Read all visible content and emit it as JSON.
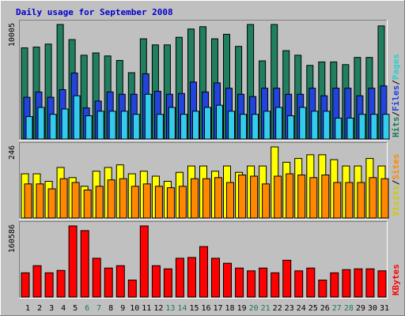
{
  "chart_data": {
    "type": "bar",
    "title": "Daily usage for September 2008",
    "categories": [
      "1",
      "2",
      "3",
      "4",
      "5",
      "6",
      "7",
      "8",
      "9",
      "10",
      "11",
      "12",
      "13",
      "14",
      "15",
      "16",
      "17",
      "18",
      "19",
      "20",
      "21",
      "22",
      "23",
      "24",
      "25",
      "26",
      "27",
      "28",
      "29",
      "30",
      "31"
    ],
    "weekend_days": [
      "6",
      "7",
      "13",
      "14",
      "20",
      "21",
      "27",
      "28"
    ],
    "panels": [
      {
        "name": "hits-files-pages",
        "ymax_label": "10005",
        "ylim": [
          0,
          10005
        ],
        "right_labels": [
          {
            "text": "Hits",
            "color": "#1a7a5a"
          },
          {
            "text": "/",
            "color": "#000000"
          },
          {
            "text": "Files",
            "color": "#1e3fe0"
          },
          {
            "text": "/",
            "color": "#000000"
          },
          {
            "text": "Pages",
            "color": "#33cccc"
          }
        ],
        "series": [
          {
            "name": "Hits",
            "color": "#1f7f5f",
            "values": [
              7965,
              8031,
              8297,
              10005,
              8688,
              7324,
              7523,
              7258,
              6863,
              5798,
              8754,
              8223,
              8223,
              8886,
              9615,
              9814,
              8754,
              9151,
              8091,
              10005,
              6830,
              10071,
              7721,
              7324,
              6433,
              6731,
              6731,
              6499,
              7125,
              7125,
              9880
            ]
          },
          {
            "name": "Files",
            "color": "#2244dd",
            "values": [
              3647,
              4111,
              3647,
              4310,
              5768,
              2719,
              3316,
              4111,
              3912,
              3912,
              5702,
              4177,
              3912,
              3978,
              4973,
              4111,
              4907,
              4442,
              3912,
              3713,
              4442,
              4442,
              3912,
              3912,
              4442,
              3779,
              4442,
              4442,
              3779,
              4442,
              4642
            ]
          },
          {
            "name": "Pages",
            "color": "#33ccee",
            "values": [
              1962,
              2757,
              2160,
              2625,
              3780,
              2028,
              2426,
              2426,
              2426,
              2160,
              3912,
              2160,
              2757,
              2160,
              2426,
              2757,
              2956,
              2426,
              2160,
              2160,
              2426,
              2757,
              2028,
              2757,
              2426,
              2426,
              1829,
              1829,
              2160,
              2160,
              2160
            ]
          }
        ]
      },
      {
        "name": "visits-sites",
        "ymax_label": "246",
        "ylim": [
          0,
          246
        ],
        "right_labels": [
          {
            "text": "Visits",
            "color": "#cccc00"
          },
          {
            "text": "/",
            "color": "#000000"
          },
          {
            "text": "Sites",
            "color": "#ff8800"
          }
        ],
        "series": [
          {
            "name": "Visits",
            "color": "#ffff00",
            "values": [
              153,
              153,
              127,
              175,
              140,
              110,
              162,
              175,
              184,
              153,
              162,
              145,
              127,
              158,
              180,
              180,
              162,
              180,
              158,
              180,
              180,
              246,
              193,
              206,
              219,
              219,
              202,
              180,
              180,
              206,
              180
            ]
          },
          {
            "name": "Sites",
            "color": "#ff8800",
            "values": [
              118,
              118,
              101,
              136,
              123,
              97,
              110,
              132,
              136,
              110,
              118,
              110,
              105,
              110,
              136,
              136,
              140,
              123,
              149,
              145,
              118,
              145,
              153,
              149,
              140,
              149,
              123,
              123,
              123,
              140,
              136
            ]
          }
        ]
      },
      {
        "name": "kbytes",
        "ymax_label": "160586",
        "ylim": [
          0,
          160586
        ],
        "right_labels": [
          {
            "text": "KBytes",
            "color": "#ff0000"
          }
        ],
        "series": [
          {
            "name": "KBytes",
            "color": "#ff0000",
            "values": [
              54700,
              70900,
              54700,
              60100,
              161000,
              150000,
              87600,
              65500,
              70900,
              38400,
              161000,
              70900,
              63700,
              87600,
              89400,
              114000,
              87600,
              76400,
              65500,
              59200,
              65500,
              54700,
              83100,
              59200,
              65500,
              38400,
              54700,
              61900,
              63700,
              63700,
              59200
            ]
          }
        ]
      }
    ]
  }
}
